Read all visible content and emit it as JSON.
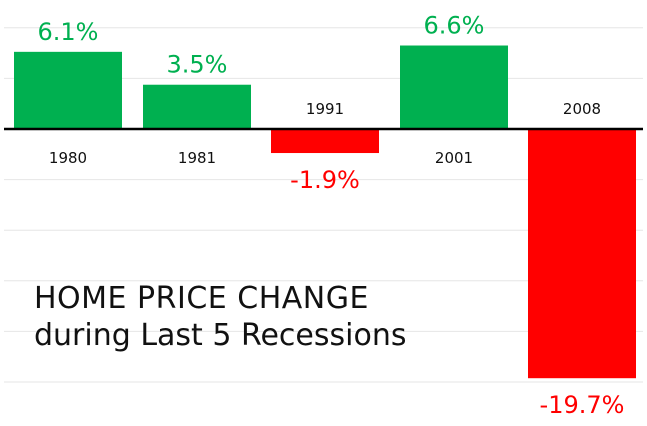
{
  "chart_data": {
    "type": "bar",
    "title": "HOME PRICE CHANGE",
    "subtitle": "during Last 5 Recessions",
    "categories": [
      "1980",
      "1981",
      "1991",
      "2001",
      "2008"
    ],
    "values": [
      6.1,
      3.5,
      -1.9,
      6.6,
      -19.7
    ],
    "value_labels": [
      "6.1%",
      "3.5%",
      "-1.9%",
      "6.6%",
      "-19.7%"
    ],
    "ylim": [
      -20.5,
      8.1
    ],
    "xlabel": "",
    "ylabel": "",
    "grid": true,
    "legend": "none",
    "colors": {
      "positive": "#00b050",
      "negative": "#ff0000",
      "axis": "#000000",
      "grid": "#e6e6e6",
      "label_positive": "#00b050",
      "label_negative": "#ff0000"
    }
  }
}
